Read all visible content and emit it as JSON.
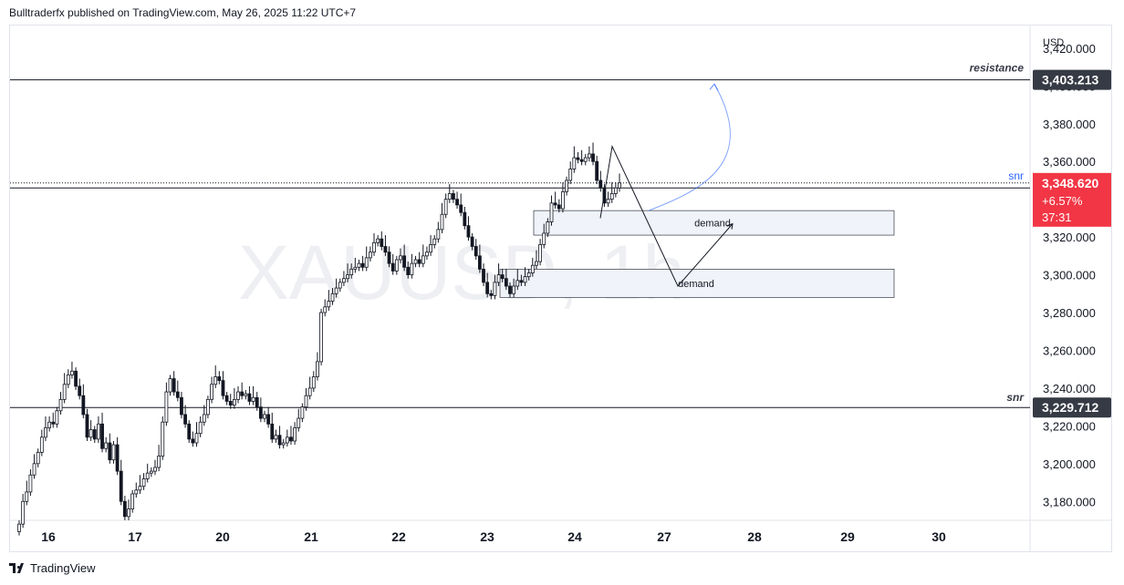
{
  "header": {
    "text": "Bulltraderfx published on TradingView.com, May 26, 2025 11:22 UTC+7"
  },
  "footer": {
    "brand": "TradingView",
    "logo_icon": "tradingview-logo-icon"
  },
  "colors": {
    "up": "#131722",
    "down": "#131722",
    "price_tag": "#f23645",
    "level_tag": "#363a45",
    "arrow": "#2962ff",
    "zone_fill": "#f0f3fa",
    "zone_border": "#131722"
  },
  "chart_data": {
    "type": "candlestick",
    "symbol": "XAUUSD, 1h",
    "currency": "USD",
    "ylim": [
      3170,
      3432
    ],
    "y_ticks": [
      3180,
      3200,
      3220,
      3240,
      3260,
      3280,
      3300,
      3320,
      3340,
      3360,
      3380,
      3400,
      3420
    ],
    "y_tick_labels": [
      "3,180.000",
      "3,200.000",
      "3,220.000",
      "3,240.000",
      "3,260.000",
      "3,280.000",
      "3,300.000",
      "3,320.000",
      "3,340.000",
      "3,360.000",
      "3,380.000",
      "3,400.000",
      "3,420.000"
    ],
    "x_labels": [
      "16",
      "17",
      "20",
      "21",
      "22",
      "23",
      "24",
      "27",
      "28",
      "29",
      "30"
    ],
    "current_price": {
      "value": 3348.62,
      "label": "3,348.620",
      "change": "+6.57%",
      "countdown": "37:31"
    },
    "levels": [
      {
        "name": "resistance",
        "value": 3403.213,
        "label": "3,403.213"
      },
      {
        "name": "snr",
        "value": 3229.712,
        "label": "3,229.712"
      },
      {
        "name": "snr",
        "value": 3346
      }
    ],
    "zones": [
      {
        "label": "demand",
        "top": 3334,
        "bottom": 3321,
        "start": "23",
        "end": "29"
      },
      {
        "label": "demand",
        "top": 3303,
        "bottom": 3288,
        "start": "23",
        "end": "29"
      }
    ],
    "projection": {
      "path_x": [
        "24",
        "24",
        "27",
        "27"
      ],
      "path_y": [
        3330,
        3368,
        3294,
        3327
      ]
    },
    "closes": [
      3168,
      3180,
      3185,
      3194,
      3200,
      3206,
      3214,
      3219,
      3222,
      3221,
      3228,
      3234,
      3242,
      3247,
      3249,
      3241,
      3236,
      3226,
      3214,
      3218,
      3213,
      3221,
      3208,
      3211,
      3202,
      3210,
      3196,
      3180,
      3172,
      3176,
      3184,
      3186,
      3188,
      3192,
      3195,
      3196,
      3198,
      3204,
      3222,
      3238,
      3245,
      3238,
      3235,
      3226,
      3221,
      3213,
      3211,
      3216,
      3222,
      3226,
      3234,
      3242,
      3246,
      3244,
      3236,
      3233,
      3231,
      3234,
      3238,
      3236,
      3237,
      3233,
      3235,
      3230,
      3224,
      3226,
      3221,
      3213,
      3215,
      3210,
      3211,
      3214,
      3212,
      3219,
      3224,
      3230,
      3236,
      3240,
      3246,
      3254,
      3280,
      3283,
      3286,
      3290,
      3293,
      3296,
      3298,
      3300,
      3303,
      3304,
      3306,
      3304,
      3309,
      3312,
      3317,
      3319,
      3315,
      3312,
      3306,
      3302,
      3308,
      3310,
      3304,
      3300,
      3306,
      3308,
      3306,
      3310,
      3312,
      3316,
      3319,
      3324,
      3332,
      3340,
      3343,
      3340,
      3337,
      3333,
      3326,
      3320,
      3315,
      3310,
      3303,
      3296,
      3290,
      3289,
      3296,
      3300,
      3298,
      3294,
      3290,
      3294,
      3297,
      3296,
      3299,
      3301,
      3305,
      3307,
      3316,
      3322,
      3328,
      3338,
      3337,
      3335,
      3344,
      3350,
      3356,
      3362,
      3361,
      3360,
      3362,
      3364,
      3360,
      3350,
      3346,
      3338,
      3340,
      3343,
      3346,
      3348.62
    ]
  }
}
